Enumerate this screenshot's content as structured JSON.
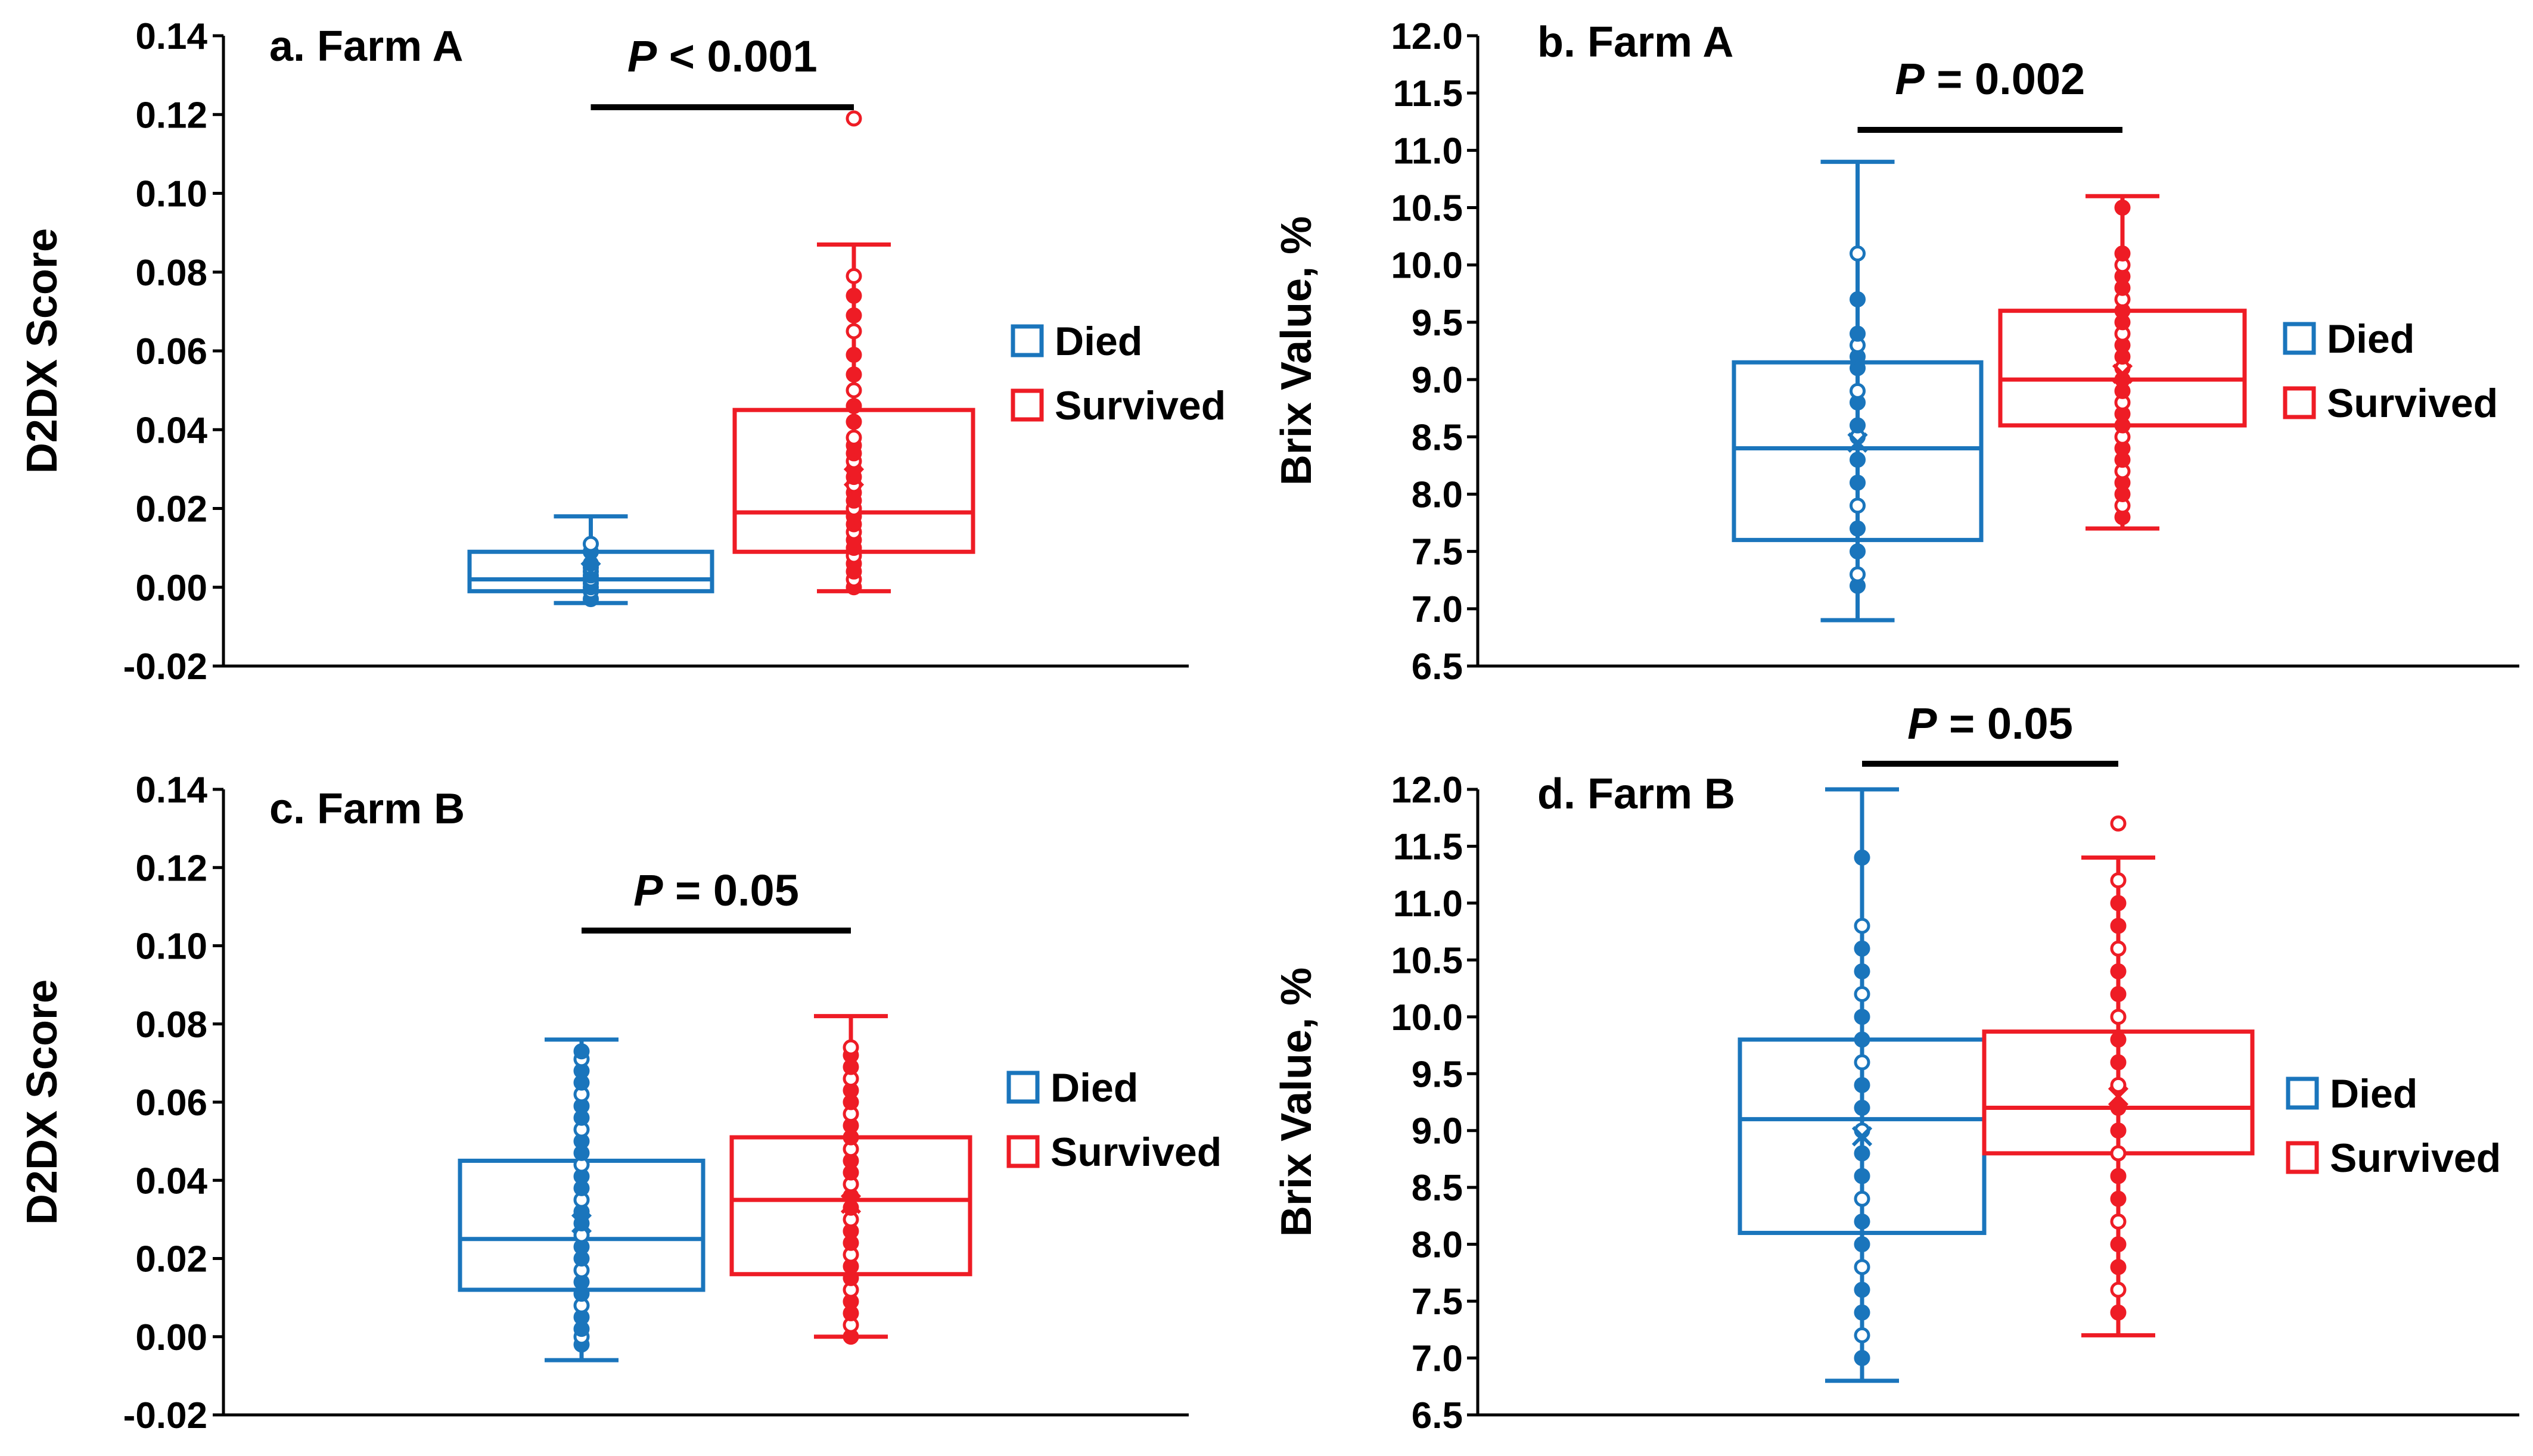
{
  "colors": {
    "died": "#1a75bc",
    "survived": "#ee1c25",
    "axis": "#000000"
  },
  "legend": {
    "died": "Died",
    "survived": "Survived"
  },
  "chart_data": [
    {
      "type": "box",
      "title": "a. Farm A",
      "ylabel": "D2DX Score",
      "ylim": [
        -0.02,
        0.14
      ],
      "ytick_step": 0.02,
      "ytick_labels": [
        "-0.02",
        "0.00",
        "0.02",
        "0.04",
        "0.06",
        "0.08",
        "0.10",
        "0.12",
        "0.14"
      ],
      "significance": {
        "p_italic": "P",
        "p_rest": " < 0.001"
      },
      "series": [
        {
          "name": "Died",
          "whisker_low": -0.004,
          "q1": -0.001,
          "median": 0.002,
          "q3": 0.009,
          "whisker_high": 0.018,
          "mean": 0.004,
          "points": [
            -0.003,
            -0.001,
            0.0,
            0.001,
            0.002,
            0.003,
            0.004,
            0.005,
            0.006,
            0.009,
            0.011
          ],
          "outliers": []
        },
        {
          "name": "Survived",
          "whisker_low": -0.001,
          "q1": 0.009,
          "median": 0.019,
          "q3": 0.045,
          "whisker_high": 0.087,
          "mean": 0.028,
          "points": [
            0.0,
            0.002,
            0.004,
            0.006,
            0.008,
            0.01,
            0.012,
            0.014,
            0.016,
            0.018,
            0.02,
            0.022,
            0.024,
            0.026,
            0.028,
            0.03,
            0.032,
            0.034,
            0.036,
            0.038,
            0.042,
            0.046,
            0.05,
            0.054,
            0.059,
            0.065,
            0.069,
            0.074,
            0.079
          ],
          "outliers": [
            0.119
          ]
        }
      ]
    },
    {
      "type": "box",
      "title": "b. Farm A",
      "ylabel": "Brix Value, %",
      "ylim": [
        6.5,
        12.0
      ],
      "ytick_step": 0.5,
      "ytick_labels": [
        "6.5",
        "7.0",
        "7.5",
        "8.0",
        "8.5",
        "9.0",
        "9.5",
        "10.0",
        "10.5",
        "11.0",
        "11.5",
        "12.0"
      ],
      "significance": {
        "p_italic": "P",
        "p_rest": " = 0.002"
      },
      "series": [
        {
          "name": "Died",
          "whisker_low": 6.9,
          "q1": 7.6,
          "median": 8.4,
          "q3": 9.15,
          "whisker_high": 10.9,
          "mean": 8.45,
          "points": [
            7.2,
            7.3,
            7.5,
            7.7,
            7.9,
            8.1,
            8.3,
            8.5,
            8.6,
            8.8,
            8.9,
            9.1,
            9.2,
            9.3,
            9.4,
            9.7,
            10.1
          ],
          "outliers": []
        },
        {
          "name": "Survived",
          "whisker_low": 7.7,
          "q1": 8.6,
          "median": 9.0,
          "q3": 9.6,
          "whisker_high": 10.6,
          "mean": 9.05,
          "points": [
            7.8,
            7.9,
            8.0,
            8.1,
            8.2,
            8.3,
            8.4,
            8.5,
            8.6,
            8.7,
            8.8,
            8.9,
            9.0,
            9.1,
            9.2,
            9.3,
            9.4,
            9.5,
            9.6,
            9.7,
            9.8,
            9.9,
            10.0,
            10.1,
            10.5
          ],
          "outliers": []
        }
      ]
    },
    {
      "type": "box",
      "title": "c. Farm B",
      "ylabel": "D2DX Score",
      "ylim": [
        -0.02,
        0.14
      ],
      "ytick_step": 0.02,
      "ytick_labels": [
        "-0.02",
        "0.00",
        "0.02",
        "0.04",
        "0.06",
        "0.08",
        "0.10",
        "0.12",
        "0.14"
      ],
      "significance": {
        "p_italic": "P",
        "p_rest": " = 0.05"
      },
      "series": [
        {
          "name": "Died",
          "whisker_low": -0.006,
          "q1": 0.012,
          "median": 0.025,
          "q3": 0.045,
          "whisker_high": 0.076,
          "mean": 0.029,
          "points": [
            -0.002,
            0.0,
            0.002,
            0.005,
            0.008,
            0.011,
            0.014,
            0.017,
            0.02,
            0.023,
            0.026,
            0.029,
            0.032,
            0.035,
            0.038,
            0.041,
            0.044,
            0.047,
            0.05,
            0.053,
            0.056,
            0.059,
            0.062,
            0.065,
            0.068,
            0.071,
            0.073
          ],
          "outliers": []
        },
        {
          "name": "Survived",
          "whisker_low": 0.0,
          "q1": 0.016,
          "median": 0.035,
          "q3": 0.051,
          "whisker_high": 0.082,
          "mean": 0.034,
          "points": [
            0.0,
            0.003,
            0.006,
            0.009,
            0.012,
            0.015,
            0.018,
            0.021,
            0.024,
            0.027,
            0.03,
            0.033,
            0.036,
            0.039,
            0.042,
            0.045,
            0.048,
            0.051,
            0.054,
            0.057,
            0.06,
            0.063,
            0.066,
            0.069,
            0.072,
            0.074
          ],
          "outliers": []
        }
      ]
    },
    {
      "type": "box",
      "title": "d. Farm B",
      "ylabel": "Brix Value, %",
      "ylim": [
        6.5,
        12.0
      ],
      "ytick_step": 0.5,
      "ytick_labels": [
        "6.5",
        "7.0",
        "7.5",
        "8.0",
        "8.5",
        "9.0",
        "9.5",
        "10.0",
        "10.5",
        "11.0",
        "11.5",
        "12.0"
      ],
      "significance": {
        "p_italic": "P",
        "p_rest": " = 0.05"
      },
      "series": [
        {
          "name": "Died",
          "whisker_low": 6.8,
          "q1": 8.1,
          "median": 9.1,
          "q3": 9.8,
          "whisker_high": 12.0,
          "mean": 8.95,
          "points": [
            7.0,
            7.2,
            7.4,
            7.6,
            7.8,
            8.0,
            8.2,
            8.4,
            8.6,
            8.8,
            9.0,
            9.2,
            9.4,
            9.6,
            9.8,
            10.0,
            10.2,
            10.4,
            10.6,
            10.8,
            11.4
          ],
          "outliers": []
        },
        {
          "name": "Survived",
          "whisker_low": 7.2,
          "q1": 8.8,
          "median": 9.2,
          "q3": 9.87,
          "whisker_high": 11.4,
          "mean": 9.3,
          "points": [
            7.4,
            7.6,
            7.8,
            8.0,
            8.2,
            8.4,
            8.6,
            8.8,
            9.0,
            9.2,
            9.4,
            9.6,
            9.8,
            10.0,
            10.2,
            10.4,
            10.6,
            10.8,
            11.0,
            11.2
          ],
          "outliers": [
            11.7
          ]
        }
      ]
    }
  ]
}
